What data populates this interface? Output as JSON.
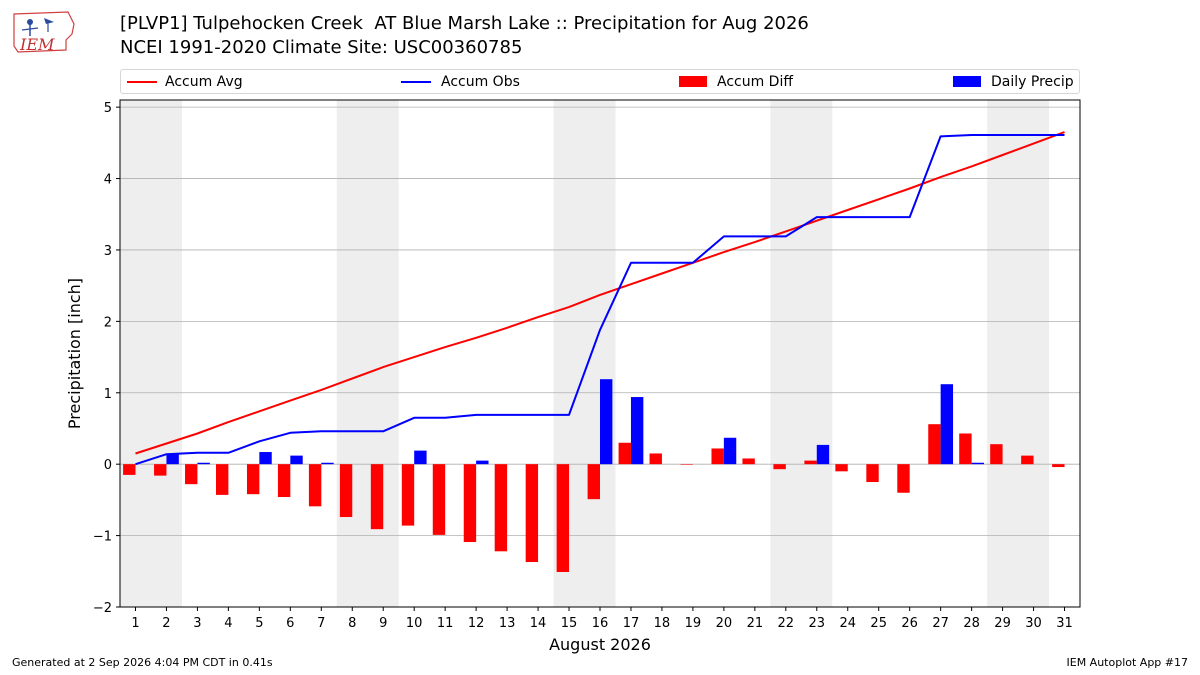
{
  "header": {
    "title_line1": "[PLVP1] Tulpehocken Creek  AT Blue Marsh Lake :: Precipitation for Aug 2026",
    "title_line2": "NCEI 1991-2020 Climate Site: USC00360785",
    "logo_text": "IEM"
  },
  "legend": {
    "accum_avg": "Accum Avg",
    "accum_obs": "Accum Obs",
    "accum_diff": "Accum Diff",
    "daily_precip": "Daily Precip"
  },
  "footer": {
    "left": "Generated at 2 Sep 2026 4:04 PM CDT in 0.41s",
    "right": "IEM Autoplot App #17"
  },
  "colors": {
    "accum_avg": "#ff0000",
    "accum_obs": "#0000ff",
    "accum_diff": "#ff0000",
    "daily_precip": "#0000ff",
    "weekend_shade": "#eeeeee",
    "grid": "#b0b0b0"
  },
  "chart_data": {
    "type": "bar",
    "title": "[PLVP1] Tulpehocken Creek  AT Blue Marsh Lake :: Precipitation for Aug 2026",
    "xlabel": "August 2026",
    "ylabel": "Precipitation [inch]",
    "ylim": [
      -2,
      5.1
    ],
    "yticks": [
      -2,
      -1,
      0,
      1,
      2,
      3,
      4,
      5
    ],
    "ytick_labels": [
      "−2",
      "−1",
      "0",
      "1",
      "2",
      "3",
      "4",
      "5"
    ],
    "grid": true,
    "legend_position": "top",
    "x": [
      1,
      2,
      3,
      4,
      5,
      6,
      7,
      8,
      9,
      10,
      11,
      12,
      13,
      14,
      15,
      16,
      17,
      18,
      19,
      20,
      21,
      22,
      23,
      24,
      25,
      26,
      27,
      28,
      29,
      30,
      31
    ],
    "weekend_spans": [
      [
        1,
        2
      ],
      [
        8,
        9
      ],
      [
        15,
        16
      ],
      [
        22,
        23
      ],
      [
        29,
        30
      ]
    ],
    "series": [
      {
        "name": "Accum Avg",
        "kind": "line",
        "values": [
          0.15,
          0.29,
          0.43,
          0.59,
          0.74,
          0.89,
          1.04,
          1.2,
          1.36,
          1.5,
          1.64,
          1.77,
          1.91,
          2.06,
          2.2,
          2.37,
          2.52,
          2.67,
          2.82,
          2.97,
          3.11,
          3.26,
          3.41,
          3.56,
          3.71,
          3.86,
          4.02,
          4.17,
          4.33,
          4.49,
          4.65
        ]
      },
      {
        "name": "Accum Obs",
        "kind": "line",
        "values": [
          0.0,
          0.14,
          0.16,
          0.16,
          0.32,
          0.44,
          0.46,
          0.46,
          0.46,
          0.65,
          0.65,
          0.69,
          0.69,
          0.69,
          0.69,
          1.88,
          2.82,
          2.82,
          2.82,
          3.19,
          3.19,
          3.19,
          3.46,
          3.46,
          3.46,
          3.46,
          4.59,
          4.61,
          4.61,
          4.61,
          4.61
        ]
      },
      {
        "name": "Accum Diff",
        "kind": "bar",
        "values": [
          -0.15,
          -0.16,
          -0.28,
          -0.43,
          -0.42,
          -0.46,
          -0.59,
          -0.74,
          -0.91,
          -0.86,
          -0.99,
          -1.09,
          -1.22,
          -1.37,
          -1.51,
          -0.49,
          0.3,
          0.15,
          0.0,
          0.22,
          0.08,
          -0.07,
          0.05,
          -0.1,
          -0.25,
          -0.4,
          0.56,
          0.43,
          0.28,
          0.12,
          -0.04
        ]
      },
      {
        "name": "Daily Precip",
        "kind": "bar",
        "values": [
          0.0,
          0.14,
          0.02,
          0.0,
          0.17,
          0.12,
          0.02,
          0.0,
          0.0,
          0.19,
          0.0,
          0.05,
          0.0,
          0.0,
          0.0,
          1.19,
          0.94,
          0.0,
          0.0,
          0.37,
          0.0,
          0.0,
          0.27,
          0.0,
          0.0,
          0.0,
          1.12,
          0.02,
          0.0,
          0.0,
          0.0
        ]
      }
    ]
  }
}
